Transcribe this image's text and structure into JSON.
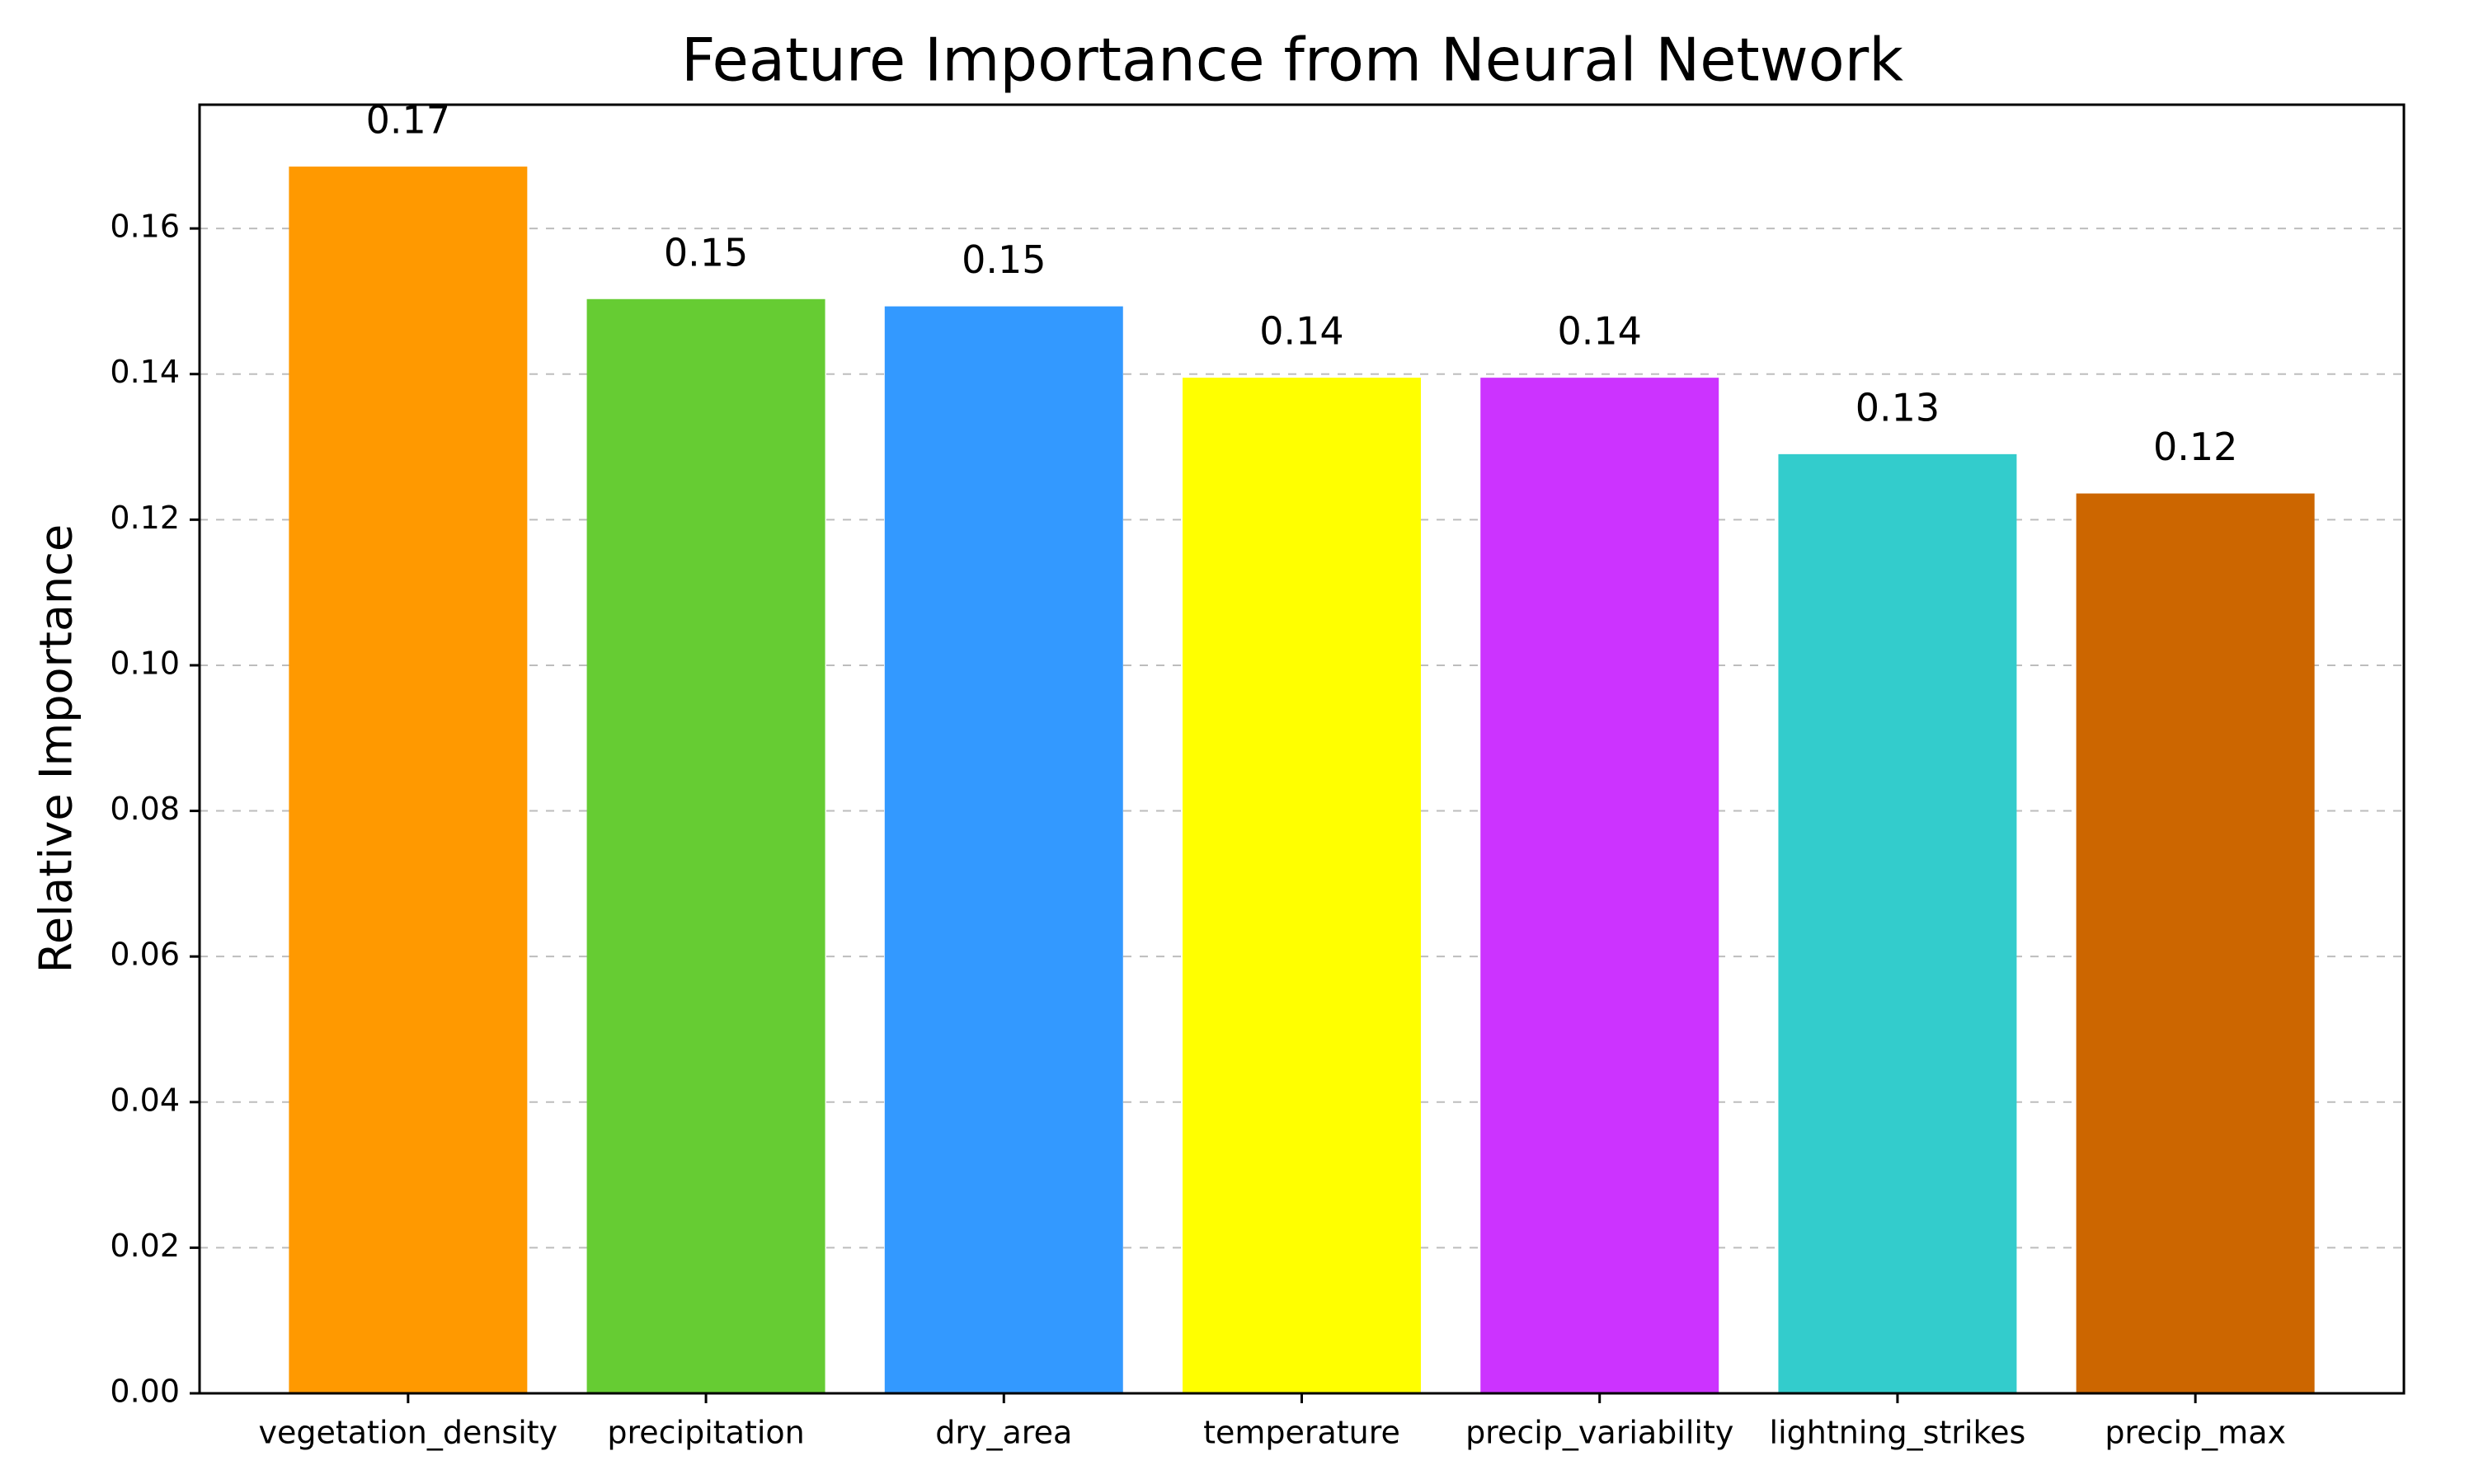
{
  "chart_data": {
    "type": "bar",
    "title": "Feature Importance from Neural Network",
    "xlabel": "",
    "ylabel": "Relative Importance",
    "categories": [
      "vegetation_density",
      "precipitation",
      "dry_area",
      "temperature",
      "precip_variability",
      "lightning_strikes",
      "precip_max"
    ],
    "values": [
      0.1685,
      0.1503,
      0.1493,
      0.1395,
      0.1395,
      0.129,
      0.1236
    ],
    "value_labels": [
      "0.17",
      "0.15",
      "0.15",
      "0.14",
      "0.14",
      "0.13",
      "0.12"
    ],
    "colors": [
      "#ff9900",
      "#66cc33",
      "#3399ff",
      "#ffff00",
      "#cc33ff",
      "#33cccc",
      "#cc6600"
    ],
    "ylim": [
      0,
      0.177
    ],
    "yticks": [
      0.0,
      0.02,
      0.04,
      0.06,
      0.08,
      0.1,
      0.12,
      0.14,
      0.16
    ],
    "ytick_labels": [
      "0.00",
      "0.02",
      "0.04",
      "0.06",
      "0.08",
      "0.10",
      "0.12",
      "0.14",
      "0.16"
    ],
    "grid": true,
    "grid_axis": "y"
  }
}
